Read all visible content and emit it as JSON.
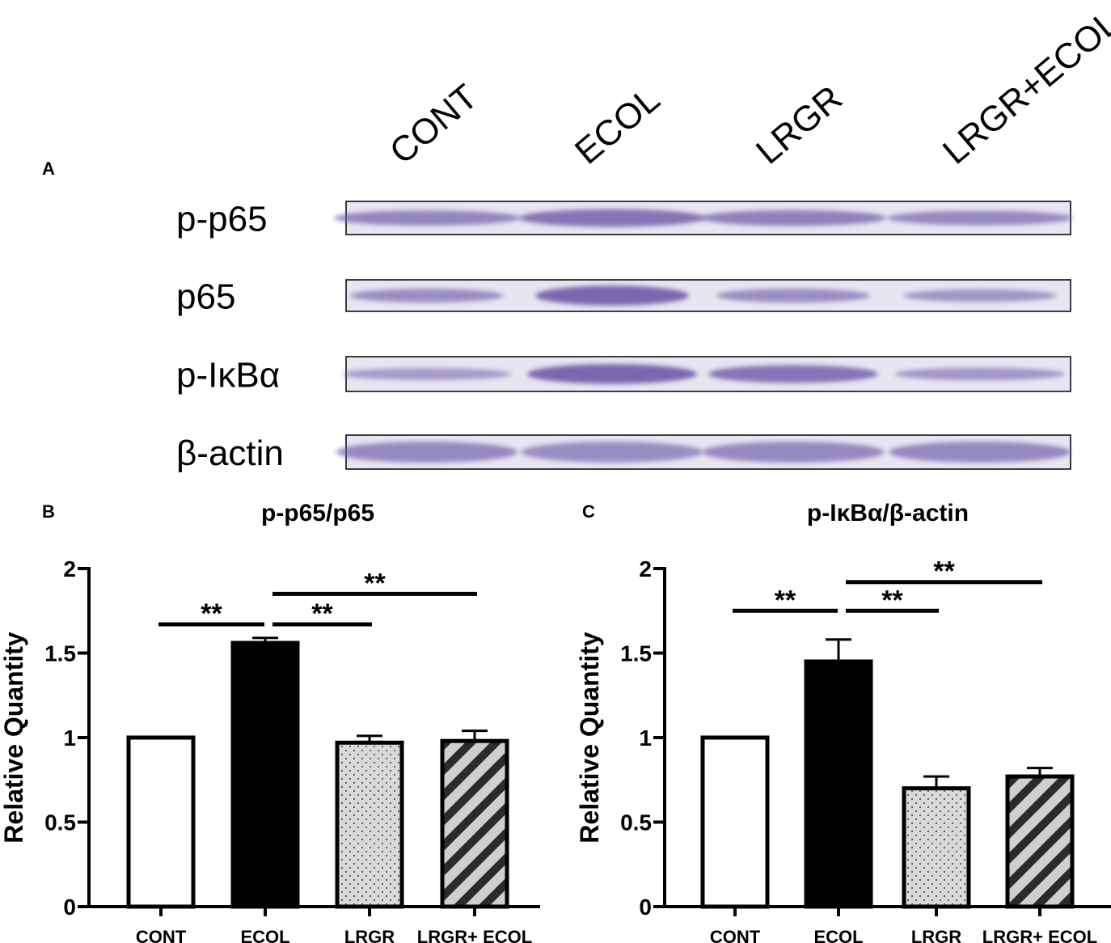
{
  "panel_labels": {
    "a": "A",
    "b": "B",
    "c": "C"
  },
  "blot": {
    "lane_labels": [
      "CONT",
      "ECOL",
      "LRGR",
      "LRGR+ECOL"
    ],
    "rows": [
      {
        "label": "p-p65",
        "intensity": [
          0.55,
          0.75,
          0.6,
          0.5
        ]
      },
      {
        "label": "p65",
        "intensity": [
          0.45,
          0.9,
          0.45,
          0.35
        ]
      },
      {
        "label": "p-IκBα",
        "intensity": [
          0.3,
          0.9,
          0.75,
          0.35
        ]
      },
      {
        "label": "β-actin",
        "intensity": [
          0.5,
          0.45,
          0.5,
          0.5
        ]
      }
    ]
  },
  "colors": {
    "membrane": "#e8e4f0",
    "band": "#6a5aa8",
    "bar_outline": "#000000",
    "bar_ecol": "#000000",
    "bar_lrgr": "#d9d9d9"
  },
  "chart_data": [
    {
      "type": "bar",
      "title": "p-p65/p65",
      "xlabel": "",
      "ylabel": "Relative Quantity",
      "categories": [
        "CONT",
        "ECOL",
        "LRGR",
        "LRGR+ ECOL"
      ],
      "values": [
        1.0,
        1.56,
        0.97,
        0.98
      ],
      "errors": [
        0.0,
        0.03,
        0.04,
        0.06
      ],
      "fills": [
        "white",
        "black",
        "dotted",
        "striped"
      ],
      "ylim": [
        0,
        2
      ],
      "yticks": [
        "0",
        "0.5",
        "1",
        "1.5",
        "2"
      ],
      "significance": [
        {
          "from": 0,
          "to": 1,
          "y": 1.67,
          "label": "**"
        },
        {
          "from": 1,
          "to": 2,
          "y": 1.67,
          "label": "**"
        },
        {
          "from": 1,
          "to": 3,
          "y": 1.85,
          "label": "**"
        }
      ]
    },
    {
      "type": "bar",
      "title": "p-IκBα/β-actin",
      "xlabel": "",
      "ylabel": "Relative Quantity",
      "categories": [
        "CONT",
        "ECOL",
        "LRGR",
        "LRGR+ ECOL"
      ],
      "values": [
        1.0,
        1.45,
        0.7,
        0.77
      ],
      "errors": [
        0.0,
        0.13,
        0.07,
        0.05
      ],
      "fills": [
        "white",
        "black",
        "dotted",
        "striped"
      ],
      "ylim": [
        0,
        2
      ],
      "yticks": [
        "0",
        "0.5",
        "1",
        "1.5",
        "2"
      ],
      "significance": [
        {
          "from": 0,
          "to": 1,
          "y": 1.75,
          "label": "**"
        },
        {
          "from": 1,
          "to": 2,
          "y": 1.75,
          "label": "**"
        },
        {
          "from": 1,
          "to": 3,
          "y": 1.92,
          "label": "**"
        }
      ]
    }
  ]
}
